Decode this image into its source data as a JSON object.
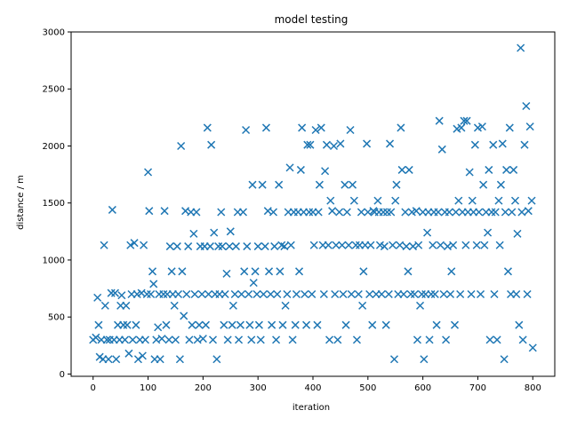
{
  "chart_data": {
    "type": "scatter",
    "title": "model testing",
    "xlabel": "iteration",
    "ylabel": "distance / m",
    "xlim": [
      -40,
      840
    ],
    "ylim": [
      -20,
      3000
    ],
    "xticks": [
      0,
      100,
      200,
      300,
      400,
      500,
      600,
      700,
      800
    ],
    "yticks": [
      0,
      500,
      1000,
      1500,
      2000,
      2500,
      3000
    ],
    "marker": "x",
    "color": "#1f77b4",
    "grid": false,
    "series": [
      {
        "values": [
          [
            0,
            300
          ],
          [
            5,
            320
          ],
          [
            8,
            670
          ],
          [
            10,
            430
          ],
          [
            12,
            150
          ],
          [
            15,
            300
          ],
          [
            18,
            130
          ],
          [
            20,
            1130
          ],
          [
            22,
            600
          ],
          [
            25,
            300
          ],
          [
            28,
            130
          ],
          [
            30,
            300
          ],
          [
            33,
            710
          ],
          [
            35,
            1440
          ],
          [
            38,
            300
          ],
          [
            40,
            710
          ],
          [
            42,
            130
          ],
          [
            45,
            430
          ],
          [
            48,
            300
          ],
          [
            50,
            600
          ],
          [
            52,
            690
          ],
          [
            55,
            430
          ],
          [
            58,
            300
          ],
          [
            60,
            600
          ],
          [
            62,
            430
          ],
          [
            65,
            180
          ],
          [
            68,
            1130
          ],
          [
            70,
            700
          ],
          [
            72,
            300
          ],
          [
            75,
            1150
          ],
          [
            78,
            430
          ],
          [
            80,
            700
          ],
          [
            82,
            130
          ],
          [
            85,
            300
          ],
          [
            88,
            710
          ],
          [
            90,
            160
          ],
          [
            92,
            1130
          ],
          [
            95,
            300
          ],
          [
            98,
            700
          ],
          [
            100,
            1770
          ],
          [
            102,
            1430
          ],
          [
            105,
            700
          ],
          [
            108,
            900
          ],
          [
            110,
            790
          ],
          [
            112,
            130
          ],
          [
            115,
            300
          ],
          [
            118,
            410
          ],
          [
            120,
            700
          ],
          [
            122,
            130
          ],
          [
            125,
            310
          ],
          [
            128,
            700
          ],
          [
            130,
            1430
          ],
          [
            133,
            430
          ],
          [
            135,
            700
          ],
          [
            138,
            300
          ],
          [
            140,
            1120
          ],
          [
            143,
            900
          ],
          [
            145,
            700
          ],
          [
            148,
            600
          ],
          [
            150,
            300
          ],
          [
            153,
            1120
          ],
          [
            155,
            700
          ],
          [
            158,
            130
          ],
          [
            160,
            2000
          ],
          [
            162,
            900
          ],
          [
            165,
            510
          ],
          [
            168,
            1430
          ],
          [
            170,
            700
          ],
          [
            173,
            1120
          ],
          [
            175,
            300
          ],
          [
            178,
            1420
          ],
          [
            180,
            430
          ],
          [
            183,
            1230
          ],
          [
            185,
            700
          ],
          [
            188,
            1420
          ],
          [
            190,
            300
          ],
          [
            193,
            430
          ],
          [
            195,
            1120
          ],
          [
            198,
            700
          ],
          [
            200,
            310
          ],
          [
            203,
            1120
          ],
          [
            205,
            430
          ],
          [
            208,
            2160
          ],
          [
            210,
            700
          ],
          [
            213,
            1120
          ],
          [
            215,
            2010
          ],
          [
            218,
            300
          ],
          [
            220,
            1240
          ],
          [
            222,
            700
          ],
          [
            225,
            130
          ],
          [
            228,
            1120
          ],
          [
            230,
            700
          ],
          [
            233,
            1420
          ],
          [
            235,
            1120
          ],
          [
            238,
            430
          ],
          [
            240,
            700
          ],
          [
            243,
            880
          ],
          [
            245,
            300
          ],
          [
            248,
            1120
          ],
          [
            250,
            1250
          ],
          [
            253,
            430
          ],
          [
            255,
            600
          ],
          [
            258,
            700
          ],
          [
            260,
            1120
          ],
          [
            263,
            1420
          ],
          [
            265,
            300
          ],
          [
            268,
            430
          ],
          [
            270,
            700
          ],
          [
            273,
            1420
          ],
          [
            275,
            900
          ],
          [
            278,
            2140
          ],
          [
            280,
            1120
          ],
          [
            283,
            700
          ],
          [
            285,
            430
          ],
          [
            288,
            300
          ],
          [
            290,
            1660
          ],
          [
            292,
            800
          ],
          [
            295,
            900
          ],
          [
            298,
            700
          ],
          [
            300,
            1120
          ],
          [
            302,
            430
          ],
          [
            305,
            300
          ],
          [
            308,
            1660
          ],
          [
            310,
            700
          ],
          [
            313,
            1120
          ],
          [
            315,
            2160
          ],
          [
            318,
            1430
          ],
          [
            320,
            900
          ],
          [
            323,
            700
          ],
          [
            325,
            430
          ],
          [
            328,
            1420
          ],
          [
            330,
            1120
          ],
          [
            333,
            300
          ],
          [
            335,
            700
          ],
          [
            338,
            1660
          ],
          [
            340,
            900
          ],
          [
            343,
            1130
          ],
          [
            345,
            430
          ],
          [
            348,
            1120
          ],
          [
            350,
            600
          ],
          [
            353,
            700
          ],
          [
            355,
            1420
          ],
          [
            358,
            1810
          ],
          [
            360,
            1130
          ],
          [
            363,
            300
          ],
          [
            365,
            1420
          ],
          [
            368,
            430
          ],
          [
            370,
            700
          ],
          [
            373,
            1420
          ],
          [
            375,
            900
          ],
          [
            378,
            1790
          ],
          [
            380,
            2160
          ],
          [
            383,
            1420
          ],
          [
            385,
            700
          ],
          [
            388,
            430
          ],
          [
            390,
            2010
          ],
          [
            393,
            1420
          ],
          [
            395,
            2010
          ],
          [
            398,
            700
          ],
          [
            400,
            1420
          ],
          [
            402,
            1130
          ],
          [
            405,
            2140
          ],
          [
            408,
            430
          ],
          [
            410,
            1420
          ],
          [
            412,
            1660
          ],
          [
            415,
            2160
          ],
          [
            418,
            1130
          ],
          [
            420,
            700
          ],
          [
            422,
            1780
          ],
          [
            425,
            2010
          ],
          [
            428,
            1130
          ],
          [
            430,
            300
          ],
          [
            432,
            1520
          ],
          [
            435,
            1430
          ],
          [
            438,
            2000
          ],
          [
            440,
            700
          ],
          [
            442,
            1130
          ],
          [
            445,
            300
          ],
          [
            448,
            1420
          ],
          [
            450,
            2020
          ],
          [
            453,
            1130
          ],
          [
            455,
            700
          ],
          [
            458,
            1660
          ],
          [
            460,
            430
          ],
          [
            462,
            1420
          ],
          [
            465,
            1130
          ],
          [
            468,
            2140
          ],
          [
            470,
            700
          ],
          [
            472,
            1660
          ],
          [
            475,
            1520
          ],
          [
            478,
            1130
          ],
          [
            480,
            300
          ],
          [
            483,
            700
          ],
          [
            485,
            1130
          ],
          [
            488,
            1420
          ],
          [
            490,
            600
          ],
          [
            492,
            900
          ],
          [
            495,
            1130
          ],
          [
            498,
            2020
          ],
          [
            500,
            1420
          ],
          [
            503,
            700
          ],
          [
            505,
            1130
          ],
          [
            508,
            430
          ],
          [
            510,
            1430
          ],
          [
            512,
            1420
          ],
          [
            515,
            700
          ],
          [
            518,
            1520
          ],
          [
            520,
            1420
          ],
          [
            522,
            1130
          ],
          [
            525,
            700
          ],
          [
            528,
            1420
          ],
          [
            530,
            1120
          ],
          [
            533,
            430
          ],
          [
            535,
            1420
          ],
          [
            538,
            700
          ],
          [
            540,
            2020
          ],
          [
            542,
            1420
          ],
          [
            545,
            1130
          ],
          [
            548,
            130
          ],
          [
            550,
            1520
          ],
          [
            552,
            1660
          ],
          [
            555,
            700
          ],
          [
            558,
            1130
          ],
          [
            560,
            2160
          ],
          [
            562,
            1790
          ],
          [
            565,
            700
          ],
          [
            568,
            1420
          ],
          [
            570,
            1120
          ],
          [
            573,
            900
          ],
          [
            575,
            1790
          ],
          [
            578,
            700
          ],
          [
            580,
            1420
          ],
          [
            582,
            1120
          ],
          [
            585,
            700
          ],
          [
            588,
            1430
          ],
          [
            590,
            300
          ],
          [
            592,
            1130
          ],
          [
            595,
            600
          ],
          [
            598,
            700
          ],
          [
            600,
            1420
          ],
          [
            602,
            130
          ],
          [
            605,
            700
          ],
          [
            608,
            1240
          ],
          [
            610,
            1420
          ],
          [
            612,
            300
          ],
          [
            615,
            700
          ],
          [
            618,
            1130
          ],
          [
            620,
            1420
          ],
          [
            622,
            700
          ],
          [
            625,
            430
          ],
          [
            628,
            1420
          ],
          [
            630,
            2220
          ],
          [
            632,
            1130
          ],
          [
            635,
            1970
          ],
          [
            638,
            700
          ],
          [
            640,
            1420
          ],
          [
            642,
            300
          ],
          [
            645,
            1120
          ],
          [
            648,
            1420
          ],
          [
            650,
            700
          ],
          [
            652,
            900
          ],
          [
            655,
            1130
          ],
          [
            658,
            430
          ],
          [
            660,
            1420
          ],
          [
            662,
            2150
          ],
          [
            665,
            1520
          ],
          [
            668,
            700
          ],
          [
            670,
            2160
          ],
          [
            672,
            1420
          ],
          [
            675,
            2220
          ],
          [
            678,
            1130
          ],
          [
            680,
            2220
          ],
          [
            682,
            1420
          ],
          [
            685,
            1770
          ],
          [
            688,
            700
          ],
          [
            690,
            1520
          ],
          [
            692,
            1420
          ],
          [
            695,
            2010
          ],
          [
            698,
            1130
          ],
          [
            700,
            2160
          ],
          [
            702,
            1420
          ],
          [
            705,
            700
          ],
          [
            708,
            2170
          ],
          [
            710,
            1660
          ],
          [
            712,
            1130
          ],
          [
            715,
            1420
          ],
          [
            718,
            1240
          ],
          [
            720,
            1790
          ],
          [
            722,
            300
          ],
          [
            725,
            1420
          ],
          [
            728,
            2010
          ],
          [
            730,
            700
          ],
          [
            732,
            1420
          ],
          [
            735,
            300
          ],
          [
            738,
            1520
          ],
          [
            740,
            1130
          ],
          [
            742,
            1660
          ],
          [
            745,
            2020
          ],
          [
            748,
            130
          ],
          [
            750,
            1420
          ],
          [
            752,
            1790
          ],
          [
            755,
            900
          ],
          [
            758,
            2160
          ],
          [
            760,
            700
          ],
          [
            762,
            1420
          ],
          [
            765,
            1790
          ],
          [
            768,
            1520
          ],
          [
            770,
            700
          ],
          [
            772,
            1230
          ],
          [
            775,
            430
          ],
          [
            778,
            2860
          ],
          [
            780,
            1420
          ],
          [
            782,
            300
          ],
          [
            785,
            2010
          ],
          [
            788,
            2350
          ],
          [
            790,
            700
          ],
          [
            792,
            1430
          ],
          [
            795,
            2170
          ],
          [
            798,
            1520
          ],
          [
            800,
            230
          ]
        ]
      }
    ]
  }
}
